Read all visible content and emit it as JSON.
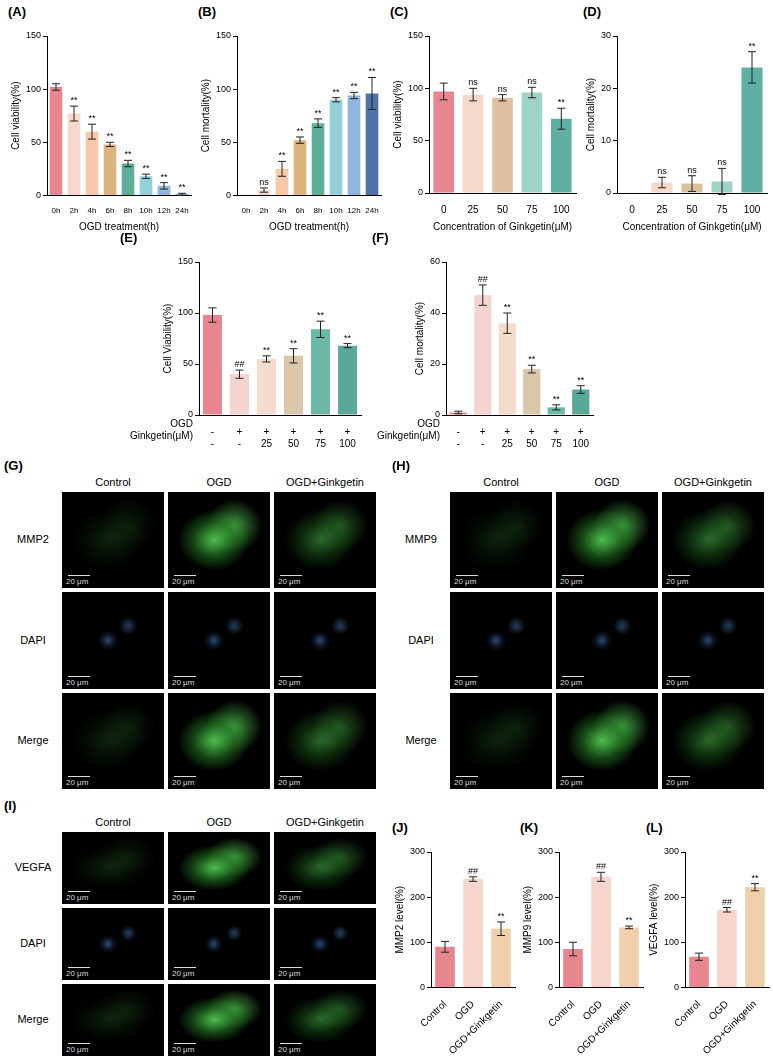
{
  "chart_data": [
    {
      "panel": "(A)",
      "type": "bar",
      "y_label": "Cell viability(%)",
      "x_label": "OGD treatment(h)",
      "categories": [
        "0h",
        "2h",
        "4h",
        "6h",
        "8h",
        "10h",
        "12h",
        "24h"
      ],
      "values": [
        102,
        77,
        60,
        48,
        30,
        18,
        9,
        1
      ],
      "error": [
        3,
        7,
        7,
        2,
        3,
        2,
        3,
        1
      ],
      "annotations": [
        null,
        "**",
        "**",
        "**",
        "**",
        "**",
        "**",
        "**"
      ],
      "colors": [
        "#e8868f",
        "#f7d9cc",
        "#f6c9a8",
        "#ddb47e",
        "#5fae9a",
        "#92d1dc",
        "#8fb6db",
        "#4d73a8"
      ],
      "ylim": [
        0,
        150
      ],
      "yticks": [
        0,
        50,
        100,
        150
      ],
      "grid": false
    },
    {
      "panel": "(B)",
      "type": "bar",
      "y_label": "Cell mortality(%)",
      "x_label": "OGD treatment(h)",
      "categories": [
        "0h",
        "2h",
        "4h",
        "6h",
        "8h",
        "10h",
        "12h",
        "24h"
      ],
      "values": [
        0,
        5,
        25,
        52,
        68,
        90,
        94,
        96
      ],
      "error": [
        0,
        2,
        7,
        3,
        4,
        2,
        3,
        15
      ],
      "annotations": [
        null,
        "ns",
        "**",
        "**",
        "**",
        "**",
        "**",
        "**"
      ],
      "colors": [
        "#e8868f",
        "#f7d9cc",
        "#f6c9a8",
        "#ddb47e",
        "#5fae9a",
        "#92d1dc",
        "#8fb6db",
        "#4d73a8"
      ],
      "ylim": [
        0,
        150
      ],
      "yticks": [
        0,
        50,
        100,
        150
      ],
      "grid": false
    },
    {
      "panel": "(C)",
      "type": "bar",
      "y_label": "Cell viability(%)",
      "x_label": "Concentration of Ginkgetin(μM)",
      "categories": [
        0,
        25,
        50,
        75,
        100
      ],
      "values": [
        97,
        94,
        91,
        96,
        71
      ],
      "error": [
        8,
        6,
        3,
        5,
        10
      ],
      "annotations": [
        null,
        "ns",
        "ns",
        "ns",
        "**"
      ],
      "colors": [
        "#e8868f",
        "#f7d9cc",
        "#ddc0a0",
        "#9fd3c5",
        "#5fb0a0"
      ],
      "ylim": [
        0,
        150
      ],
      "yticks": [
        0,
        50,
        100,
        150
      ],
      "grid": false
    },
    {
      "panel": "(D)",
      "type": "bar",
      "y_label": "Cell mortality(%)",
      "x_label": "Concentration of Ginkgetin(μM)",
      "categories": [
        0,
        25,
        50,
        75,
        100
      ],
      "values": [
        0,
        2,
        1.8,
        2.2,
        24
      ],
      "error": [
        0,
        1,
        1.5,
        2.5,
        3
      ],
      "annotations": [
        null,
        "ns",
        "ns",
        "ns",
        "**"
      ],
      "colors": [
        "#e8868f",
        "#f7d9cc",
        "#ddc0a0",
        "#9fd3c5",
        "#5fb0a0"
      ],
      "ylim": [
        0,
        30
      ],
      "yticks": [
        0,
        10,
        20,
        30
      ],
      "grid": false
    },
    {
      "panel": "(E)",
      "type": "bar",
      "y_label": "Cell Viability(%)",
      "category_rows": [
        "OGD",
        "Ginkgetin(μM)"
      ],
      "categories": [
        [
          "-",
          "-"
        ],
        [
          "+",
          "-"
        ],
        [
          "+",
          "25"
        ],
        [
          "+",
          "50"
        ],
        [
          "+",
          "75"
        ],
        [
          "+",
          "100"
        ]
      ],
      "values": [
        98,
        40,
        55,
        58,
        84,
        68
      ],
      "error": [
        7,
        4,
        3,
        7,
        8,
        2
      ],
      "annotations": [
        null,
        "##",
        "**",
        "**",
        "**",
        "**"
      ],
      "colors": [
        "#e8868f",
        "#f5d3cf",
        "#f3dccb",
        "#dcc6a8",
        "#6bb8a4",
        "#5aa89a"
      ],
      "ylim": [
        0,
        150
      ],
      "yticks": [
        0,
        50,
        100,
        150
      ],
      "grid": false
    },
    {
      "panel": "(F)",
      "type": "bar",
      "y_label": "Cell mortality(%)",
      "category_rows": [
        "OGD",
        "Ginkgetin(μM)"
      ],
      "categories": [
        [
          "-",
          "-"
        ],
        [
          "+",
          "-"
        ],
        [
          "+",
          "25"
        ],
        [
          "+",
          "50"
        ],
        [
          "+",
          "75"
        ],
        [
          "+",
          "100"
        ]
      ],
      "values": [
        1,
        47,
        36,
        18,
        3,
        10
      ],
      "error": [
        0.5,
        4,
        4,
        1.5,
        1,
        1.5
      ],
      "annotations": [
        null,
        "##",
        "**",
        "**",
        "**",
        "**"
      ],
      "colors": [
        "#e8868f",
        "#f5d3cf",
        "#f3dccb",
        "#dcc6a8",
        "#6bb8a4",
        "#5aa89a"
      ],
      "ylim": [
        0,
        60
      ],
      "yticks": [
        0,
        20,
        40,
        60
      ],
      "grid": false
    },
    {
      "panel": "(J)",
      "type": "bar",
      "y_label": "MMP2 level(%)",
      "categories": [
        "Control",
        "OGD",
        "OGD+Ginkgetin"
      ],
      "values": [
        90,
        240,
        130
      ],
      "error": [
        12,
        5,
        15
      ],
      "annotations": [
        null,
        "##",
        "**"
      ],
      "colors": [
        "#e8868f",
        "#f5d5cc",
        "#f0d0ab"
      ],
      "ylim": [
        0,
        300
      ],
      "yticks": [
        0,
        100,
        200,
        300
      ],
      "grid": false
    },
    {
      "panel": "(K)",
      "type": "bar",
      "y_label": "MMP9 level(%)",
      "categories": [
        "Control",
        "OGD",
        "OGD+Ginkgetin"
      ],
      "values": [
        85,
        245,
        133
      ],
      "error": [
        15,
        10,
        3
      ],
      "annotations": [
        null,
        "##",
        "**"
      ],
      "colors": [
        "#e8868f",
        "#f5d5cc",
        "#f0d0ab"
      ],
      "ylim": [
        0,
        300
      ],
      "yticks": [
        0,
        100,
        200,
        300
      ],
      "grid": false
    },
    {
      "panel": "(L)",
      "type": "bar",
      "y_label": "VEGFA level(%)",
      "categories": [
        "Control",
        "OGD",
        "OGD+Ginkgetin"
      ],
      "values": [
        68,
        172,
        222
      ],
      "error": [
        8,
        5,
        8
      ],
      "annotations": [
        null,
        "##",
        "**"
      ],
      "colors": [
        "#e8868f",
        "#f5d5cc",
        "#f0d0ab"
      ],
      "ylim": [
        0,
        300
      ],
      "yticks": [
        0,
        100,
        200,
        300
      ],
      "grid": false
    }
  ],
  "image_panels": [
    {
      "panel": "(G)",
      "columns": [
        "Control",
        "OGD",
        "OGD+Ginkgetin"
      ],
      "rows": [
        "MMP2",
        "DAPI",
        "Merge"
      ],
      "scale_bar": "20 μm"
    },
    {
      "panel": "(H)",
      "columns": [
        "Control",
        "OGD",
        "OGD+Ginkgetin"
      ],
      "rows": [
        "MMP9",
        "DAPI",
        "Merge"
      ],
      "scale_bar": "20 μm"
    },
    {
      "panel": "(I)",
      "columns": [
        "Control",
        "OGD",
        "OGD+Ginkgetin"
      ],
      "rows": [
        "VEGFA",
        "DAPI",
        "Merge"
      ],
      "scale_bar": "20 μm"
    }
  ]
}
